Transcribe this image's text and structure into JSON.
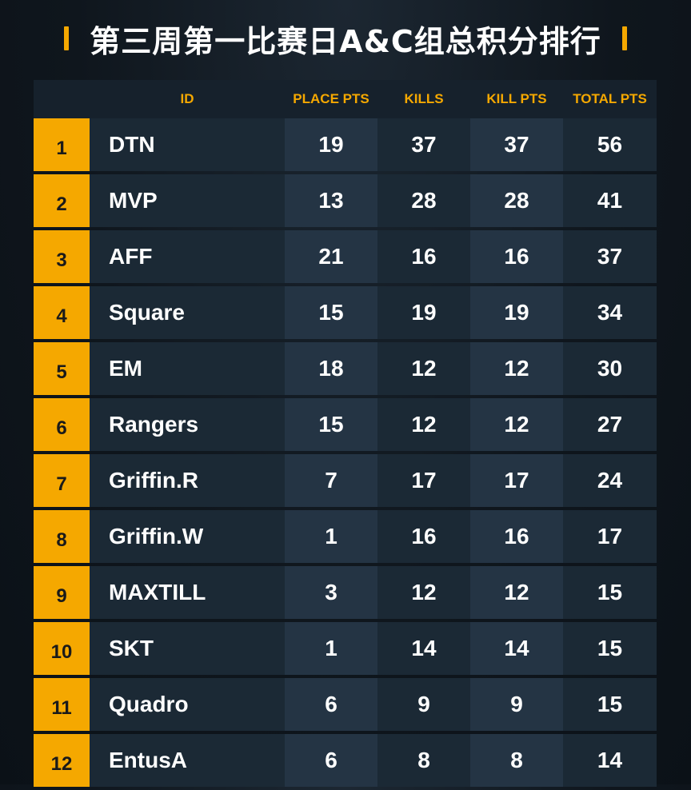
{
  "title": "第三周第一比赛日A&C组总积分排行",
  "colors": {
    "accent": "#f5a800",
    "background": "#0f161d",
    "row_dark": "#1b2935",
    "row_light": "#243444",
    "text": "#ffffff"
  },
  "columns": {
    "id": "ID",
    "place_pts": "PLACE PTS",
    "kills": "KILLS",
    "kill_pts": "KILL PTS",
    "total_pts": "TOTAL PTS"
  },
  "rows": [
    {
      "rank": "1",
      "team": "DTN",
      "place_pts": "19",
      "kills": "37",
      "kill_pts": "37",
      "total_pts": "56"
    },
    {
      "rank": "2",
      "team": "MVP",
      "place_pts": "13",
      "kills": "28",
      "kill_pts": "28",
      "total_pts": "41"
    },
    {
      "rank": "3",
      "team": "AFF",
      "place_pts": "21",
      "kills": "16",
      "kill_pts": "16",
      "total_pts": "37"
    },
    {
      "rank": "4",
      "team": "Square",
      "place_pts": "15",
      "kills": "19",
      "kill_pts": "19",
      "total_pts": "34"
    },
    {
      "rank": "5",
      "team": "EM",
      "place_pts": "18",
      "kills": "12",
      "kill_pts": "12",
      "total_pts": "30"
    },
    {
      "rank": "6",
      "team": "Rangers",
      "place_pts": "15",
      "kills": "12",
      "kill_pts": "12",
      "total_pts": "27"
    },
    {
      "rank": "7",
      "team": "Griffin.R",
      "place_pts": "7",
      "kills": "17",
      "kill_pts": "17",
      "total_pts": "24"
    },
    {
      "rank": "8",
      "team": "Griffin.W",
      "place_pts": "1",
      "kills": "16",
      "kill_pts": "16",
      "total_pts": "17"
    },
    {
      "rank": "9",
      "team": "MAXTILL",
      "place_pts": "3",
      "kills": "12",
      "kill_pts": "12",
      "total_pts": "15"
    },
    {
      "rank": "10",
      "team": "SKT",
      "place_pts": "1",
      "kills": "14",
      "kill_pts": "14",
      "total_pts": "15"
    },
    {
      "rank": "11",
      "team": "Quadro",
      "place_pts": "6",
      "kills": "9",
      "kill_pts": "9",
      "total_pts": "15"
    },
    {
      "rank": "12",
      "team": "EntusA",
      "place_pts": "6",
      "kills": "8",
      "kill_pts": "8",
      "total_pts": "14"
    }
  ]
}
